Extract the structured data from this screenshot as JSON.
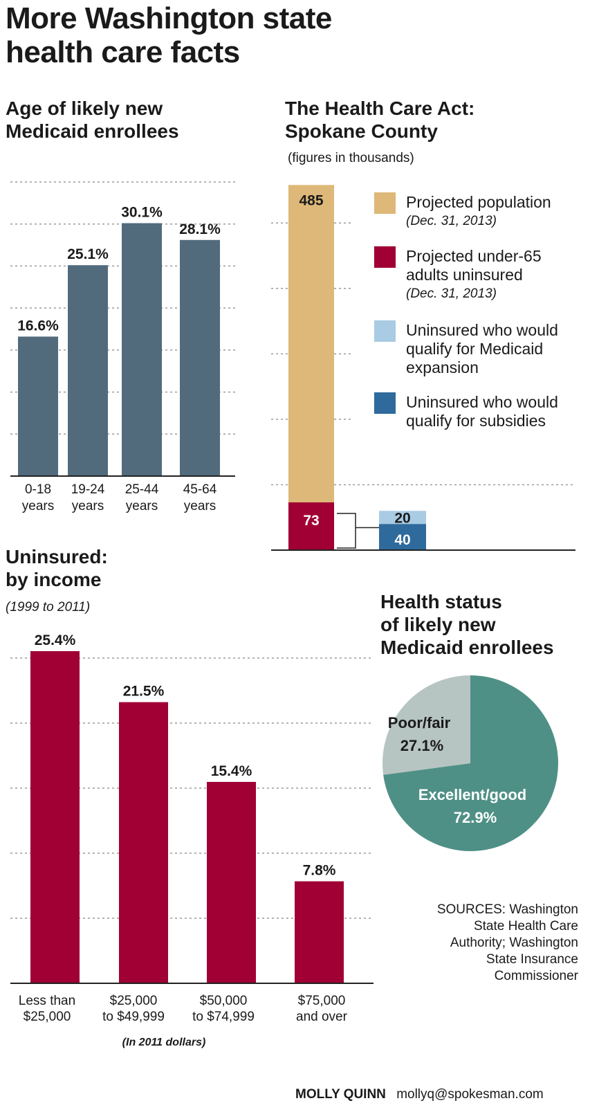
{
  "header": {
    "title_line1": "More Washington state",
    "title_line2": "health care facts"
  },
  "colors": {
    "age_bar": "#516b7d",
    "income_bar": "#a00034",
    "population": "#deb878",
    "uninsured": "#a00034",
    "medicaid": "#a9cbe3",
    "subsidies": "#2e6a9c",
    "pie_good": "#4f9086",
    "pie_poor": "#b6c4c2"
  },
  "chart_data": [
    {
      "id": "age",
      "type": "bar",
      "title_line1": "Age of likely new",
      "title_line2": "Medicaid enrollees",
      "categories": [
        [
          "0-18",
          "years"
        ],
        [
          "19-24",
          "years"
        ],
        [
          "25-44",
          "years"
        ],
        [
          "45-64",
          "years"
        ]
      ],
      "values": [
        16.6,
        25.1,
        30.1,
        28.1
      ],
      "value_labels": [
        "16.6%",
        "25.1%",
        "30.1%",
        "28.1%"
      ],
      "ylim": [
        0,
        35
      ],
      "grid": true
    },
    {
      "id": "spokane",
      "type": "bar",
      "title_line1": "The Health Care Act:",
      "title_line2": "Spokane County",
      "note": "(figures in thousands)",
      "series": [
        {
          "name": "Projected population",
          "sub": "(Dec. 31, 2013)",
          "values": [
            485
          ]
        },
        {
          "name_lines": [
            "Projected under-65",
            "adults uninsured"
          ],
          "sub": "(Dec. 31, 2013)",
          "values": [
            73
          ]
        },
        {
          "name_lines": [
            "Uninsured who would",
            "qualify for Medicaid",
            "expansion"
          ],
          "values": [
            20
          ]
        },
        {
          "name_lines": [
            "Uninsured who would",
            "qualify for subsidies"
          ],
          "values": [
            40
          ]
        }
      ],
      "labels": {
        "population": "485",
        "uninsured": "73",
        "medicaid": "20",
        "subsidies": "40"
      },
      "ylim": [
        0,
        570
      ],
      "grid": true,
      "legend": "right"
    },
    {
      "id": "income",
      "type": "bar",
      "title_line1": "Uninsured:",
      "title_line2": "by income",
      "note": "(1999 to 2011)",
      "categories": [
        [
          "Less than",
          "$25,000"
        ],
        [
          "$25,000",
          "to $49,999"
        ],
        [
          "$50,000",
          "to $74,999"
        ],
        [
          "$75,000",
          "and over"
        ]
      ],
      "values": [
        25.4,
        21.5,
        15.4,
        7.8
      ],
      "value_labels": [
        "25.4%",
        "21.5%",
        "15.4%",
        "7.8%"
      ],
      "ylim": [
        0,
        25.4
      ],
      "footnote": "(In 2011 dollars)",
      "grid": true
    },
    {
      "id": "health",
      "type": "pie",
      "title_line1": "Health status",
      "title_line2": "of likely new",
      "title_line3": "Medicaid enrollees",
      "slices": [
        {
          "label": "Excellent/good",
          "value": 72.9,
          "value_label": "72.9%"
        },
        {
          "label": "Poor/fair",
          "value": 27.1,
          "value_label": "27.1%"
        }
      ]
    }
  ],
  "sources": [
    "SOURCES: Washington",
    "State Health Care",
    "Authority; Washington",
    "State Insurance",
    "Commissioner"
  ],
  "credit": {
    "name": "MOLLY QUINN",
    "email": "mollyq@spokesman.com"
  }
}
